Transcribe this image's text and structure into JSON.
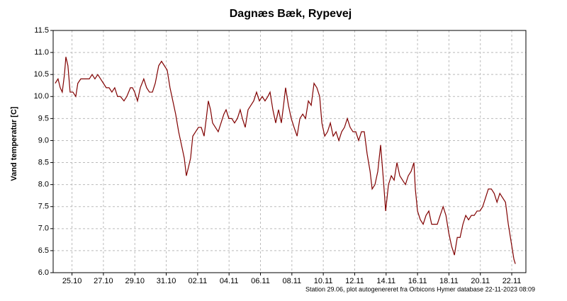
{
  "chart_data": {
    "type": "line",
    "title": "Dagnæs Bæk, Rypevej",
    "ylabel": "Vand temperatur [C]",
    "footnote": "Station 29.06, plot autogenereret fra Orbicons Hymer database 22-11-2023 08:09",
    "grid": true,
    "xlim": [
      23.8,
      53.9
    ],
    "ylim": [
      6,
      11.5
    ],
    "xticks": [
      {
        "value": 25,
        "label": "25.10"
      },
      {
        "value": 27,
        "label": "27.10"
      },
      {
        "value": 29,
        "label": "29.10"
      },
      {
        "value": 31,
        "label": "31.10"
      },
      {
        "value": 33,
        "label": "02.11"
      },
      {
        "value": 35,
        "label": "04.11"
      },
      {
        "value": 37,
        "label": "06.11"
      },
      {
        "value": 39,
        "label": "08.11"
      },
      {
        "value": 41,
        "label": "10.11"
      },
      {
        "value": 43,
        "label": "12.11"
      },
      {
        "value": 45,
        "label": "14.11"
      },
      {
        "value": 47,
        "label": "16.11"
      },
      {
        "value": 49,
        "label": "18.11"
      },
      {
        "value": 51,
        "label": "20.11"
      },
      {
        "value": 53,
        "label": "22.11"
      }
    ],
    "yticks": [
      {
        "value": 6,
        "label": "6.0"
      },
      6.5,
      {
        "value": 7,
        "label": "7.0"
      },
      7.5,
      {
        "value": 8,
        "label": "8.0"
      },
      8.5,
      {
        "value": 9,
        "label": "9.0"
      },
      9.5,
      {
        "value": 10,
        "label": "10.0"
      },
      10.5,
      {
        "value": 11,
        "label": "11.0"
      },
      11.5
    ],
    "series": [
      {
        "color": "#800000",
        "x": [
          23.93,
          24.11,
          24.25,
          24.38,
          24.52,
          24.61,
          24.74,
          24.88,
          25.06,
          25.24,
          25.37,
          25.56,
          25.83,
          26.1,
          26.28,
          26.46,
          26.64,
          26.82,
          27.0,
          27.18,
          27.36,
          27.54,
          27.72,
          27.9,
          28.08,
          28.31,
          28.49,
          28.72,
          28.85,
          28.99,
          29.17,
          29.35,
          29.57,
          29.75,
          29.93,
          30.12,
          30.3,
          30.52,
          30.7,
          30.88,
          31.06,
          31.24,
          31.42,
          31.6,
          31.79,
          31.97,
          32.15,
          32.28,
          32.42,
          32.55,
          32.69,
          32.87,
          33.05,
          33.23,
          33.41,
          33.55,
          33.68,
          33.82,
          33.95,
          34.13,
          34.31,
          34.49,
          34.67,
          34.81,
          34.99,
          35.17,
          35.35,
          35.53,
          35.71,
          35.85,
          36.03,
          36.21,
          36.39,
          36.57,
          36.75,
          36.93,
          37.11,
          37.29,
          37.47,
          37.61,
          37.79,
          37.97,
          38.15,
          38.33,
          38.47,
          38.6,
          38.78,
          38.96,
          39.14,
          39.33,
          39.51,
          39.69,
          39.87,
          40.05,
          40.23,
          40.41,
          40.59,
          40.77,
          40.91,
          41.09,
          41.27,
          41.45,
          41.63,
          41.81,
          41.99,
          42.17,
          42.35,
          42.53,
          42.71,
          42.89,
          43.07,
          43.25,
          43.43,
          43.61,
          43.79,
          43.98,
          44.11,
          44.29,
          44.47,
          44.65,
          44.83,
          44.97,
          45.15,
          45.33,
          45.51,
          45.69,
          45.87,
          46.05,
          46.23,
          46.41,
          46.59,
          46.77,
          46.86,
          47.0,
          47.18,
          47.36,
          47.54,
          47.72,
          47.9,
          48.08,
          48.26,
          48.44,
          48.63,
          48.81,
          48.99,
          49.17,
          49.35,
          49.53,
          49.71,
          49.89,
          50.07,
          50.25,
          50.43,
          50.61,
          50.79,
          50.97,
          51.15,
          51.33,
          51.51,
          51.7,
          51.88,
          52.06,
          52.24,
          52.42,
          52.6,
          52.78,
          52.96,
          53.14,
          53.23
        ],
        "values": [
          10.3,
          10.4,
          10.2,
          10.1,
          10.5,
          10.9,
          10.7,
          10.1,
          10.1,
          10.0,
          10.3,
          10.4,
          10.4,
          10.4,
          10.5,
          10.4,
          10.5,
          10.4,
          10.3,
          10.2,
          10.2,
          10.1,
          10.2,
          10.0,
          10.0,
          9.9,
          10.0,
          10.2,
          10.2,
          10.1,
          9.9,
          10.2,
          10.4,
          10.2,
          10.1,
          10.1,
          10.3,
          10.7,
          10.8,
          10.7,
          10.6,
          10.2,
          9.9,
          9.6,
          9.2,
          8.9,
          8.6,
          8.2,
          8.4,
          8.6,
          9.1,
          9.2,
          9.3,
          9.3,
          9.1,
          9.5,
          9.9,
          9.7,
          9.4,
          9.3,
          9.2,
          9.4,
          9.6,
          9.7,
          9.5,
          9.5,
          9.4,
          9.5,
          9.7,
          9.5,
          9.3,
          9.7,
          9.8,
          9.9,
          10.1,
          9.9,
          10.0,
          9.9,
          10.0,
          10.1,
          9.7,
          9.4,
          9.7,
          9.4,
          9.8,
          10.2,
          9.8,
          9.5,
          9.3,
          9.1,
          9.5,
          9.6,
          9.5,
          9.9,
          9.8,
          10.3,
          10.2,
          10.0,
          9.4,
          9.1,
          9.2,
          9.4,
          9.1,
          9.2,
          9.0,
          9.2,
          9.3,
          9.5,
          9.3,
          9.2,
          9.2,
          9.0,
          9.2,
          9.2,
          8.7,
          8.3,
          7.9,
          8.0,
          8.3,
          8.9,
          8.1,
          7.4,
          8.0,
          8.2,
          8.1,
          8.5,
          8.2,
          8.1,
          8.0,
          8.2,
          8.3,
          8.5,
          7.9,
          7.4,
          7.2,
          7.1,
          7.3,
          7.4,
          7.1,
          7.1,
          7.1,
          7.3,
          7.5,
          7.3,
          6.9,
          6.6,
          6.4,
          6.8,
          6.8,
          7.1,
          7.3,
          7.2,
          7.3,
          7.3,
          7.4,
          7.4,
          7.5,
          7.7,
          7.9,
          7.9,
          7.8,
          7.6,
          7.8,
          7.7,
          7.6,
          7.1,
          6.7,
          6.3,
          6.2
        ]
      }
    ]
  }
}
